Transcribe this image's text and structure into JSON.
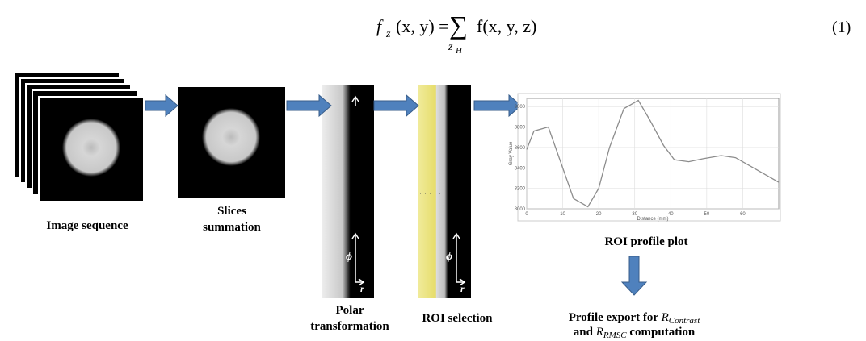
{
  "equation": {
    "lhs": "f",
    "lhs_sub": "z",
    "lhs_args": "(x, y) =",
    "sum": "∑",
    "sum_sub": "z",
    "sum_sub_sub": "H",
    "rhs": "f(x, y, z)",
    "number": "(1)"
  },
  "steps": {
    "image_sequence": "Image sequence",
    "slices_1": "Slices",
    "slices_2": "summation",
    "polar_1": "Polar",
    "polar_2": "transformation",
    "roi_selection": "ROI selection",
    "profile_plot": "ROI  profile plot",
    "export_1": "Profile export for",
    "export_r1": "R",
    "export_r1_sub": "Contrast",
    "export_2a": "and",
    "export_r2": "R",
    "export_r2_sub": "RMSC",
    "export_2b": "computation"
  },
  "axes_glyphs": {
    "phi": "ϕ",
    "r": "r"
  },
  "profile_plot": {
    "type": "line",
    "x_label": "Distance (mm)",
    "y_label": "Gray Value",
    "color": "#8c8c8c",
    "x": [
      0,
      2,
      6,
      13,
      17,
      20,
      23,
      27,
      31,
      34,
      38,
      41,
      45,
      49,
      54,
      58,
      63,
      70
    ],
    "values": [
      8580,
      8760,
      8800,
      8100,
      8020,
      8200,
      8600,
      8980,
      9060,
      8880,
      8620,
      8480,
      8460,
      8490,
      8520,
      8500,
      8400,
      8260
    ],
    "xlim": [
      0,
      70
    ],
    "ylim": [
      8000,
      9080
    ],
    "xticks": [
      0,
      10,
      20,
      30,
      40,
      50,
      60
    ],
    "yticks": [
      8000,
      8200,
      8400,
      8600,
      8800,
      9000
    ],
    "grid": true
  }
}
